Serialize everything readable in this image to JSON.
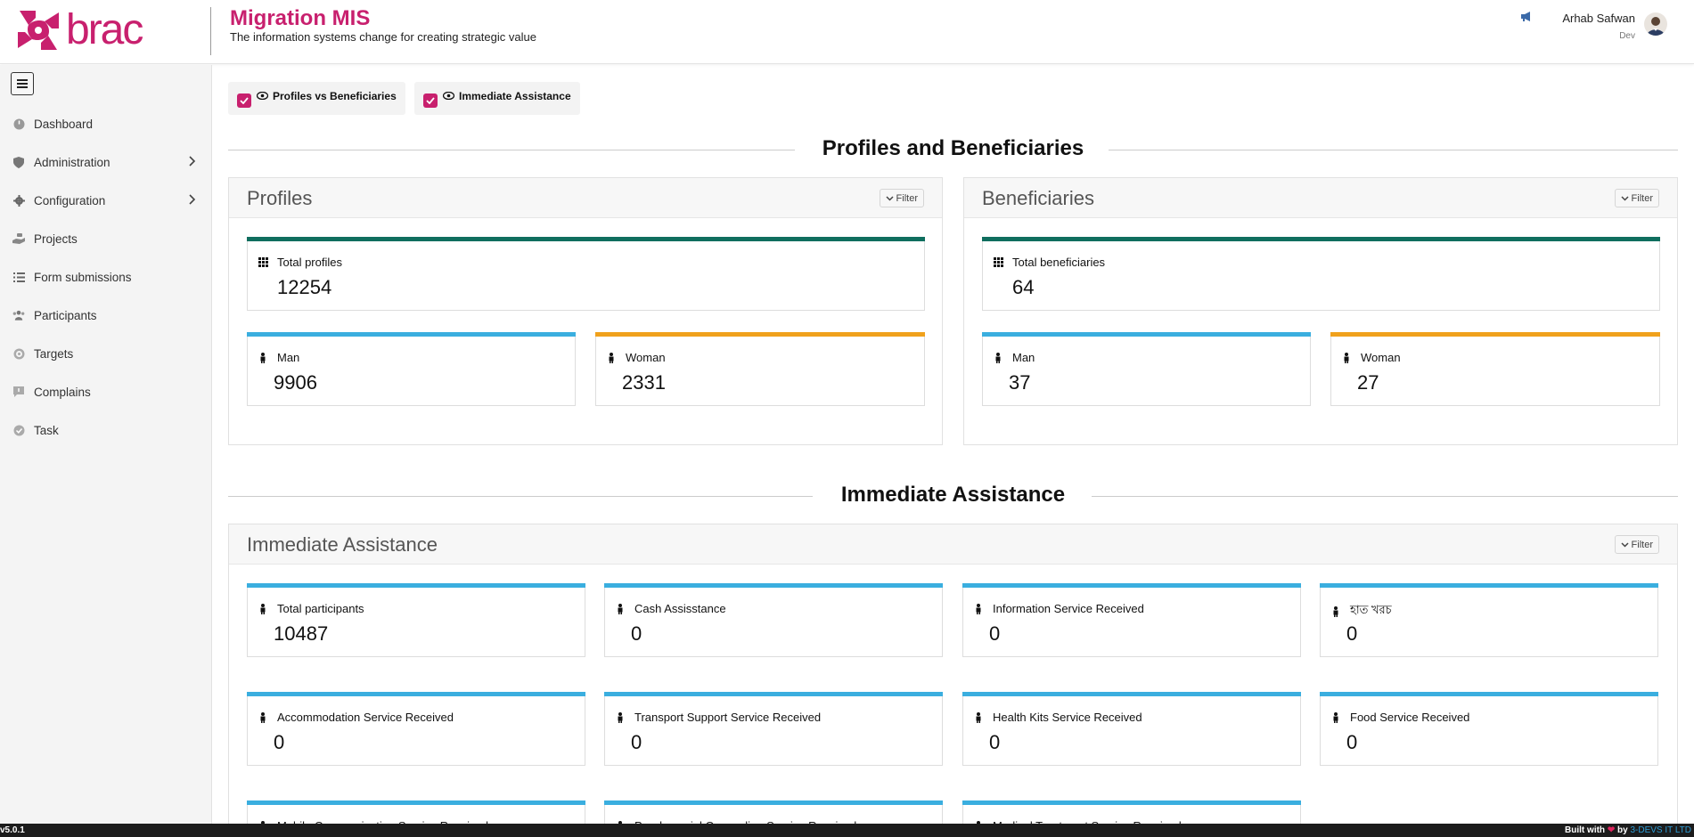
{
  "header": {
    "logo_text": "brac",
    "app_title": "Migration MIS",
    "app_subtitle": "The information systems change for creating strategic value",
    "user_name": "Arhab Safwan",
    "user_role": "Dev"
  },
  "sidebar": {
    "items": [
      {
        "label": "Dashboard",
        "icon": "dashboard-icon"
      },
      {
        "label": "Administration",
        "icon": "shield-icon"
      },
      {
        "label": "Configuration",
        "icon": "gear-icon"
      },
      {
        "label": "Projects",
        "icon": "hand-icon"
      },
      {
        "label": "Form submissions",
        "icon": "list-icon"
      },
      {
        "label": "Participants",
        "icon": "users-icon"
      },
      {
        "label": "Targets",
        "icon": "target-icon"
      },
      {
        "label": "Complains",
        "icon": "comment-icon"
      },
      {
        "label": "Task",
        "icon": "check-circle-icon"
      }
    ]
  },
  "toggles": {
    "profiles_vs_beneficiaries": "Profiles vs Beneficiaries",
    "immediate_assistance": "Immediate Assistance"
  },
  "sections": {
    "profiles_beneficiaries_title": "Profiles and Beneficiaries",
    "immediate_title": "Immediate Assistance"
  },
  "profiles": {
    "title": "Profiles",
    "filter": "Filter",
    "total_label": "Total profiles",
    "total_value": "12254",
    "man_label": "Man",
    "man_value": "9906",
    "woman_label": "Woman",
    "woman_value": "2331"
  },
  "beneficiaries": {
    "title": "Beneficiaries",
    "filter": "Filter",
    "total_label": "Total beneficiaries",
    "total_value": "64",
    "man_label": "Man",
    "man_value": "37",
    "woman_label": "Woman",
    "woman_value": "27"
  },
  "immediate": {
    "title": "Immediate Assistance",
    "filter": "Filter",
    "cards": [
      {
        "label": "Total participants",
        "value": "10487"
      },
      {
        "label": "Cash Assisstance",
        "value": "0"
      },
      {
        "label": "Information Service Received",
        "value": "0"
      },
      {
        "label": "হাত খরচ",
        "value": "0"
      },
      {
        "label": "Accommodation Service Received",
        "value": "0"
      },
      {
        "label": "Transport Support Service Received",
        "value": "0"
      },
      {
        "label": "Health Kits Service Received",
        "value": "0"
      },
      {
        "label": "Food Service Received",
        "value": "0"
      },
      {
        "label": "Mobile Communication Service Received",
        "value": ""
      },
      {
        "label": "Psychosocial Counseling Service Received",
        "value": ""
      },
      {
        "label": "Medical Treatment Service Received",
        "value": ""
      }
    ]
  },
  "footer": {
    "version": "v5.0.1",
    "built_with": "Built with",
    "by": "by",
    "company": "3-DEVS IT LTD"
  },
  "colors": {
    "brand": "#c8206e",
    "teal": "#0f6e5e",
    "blue": "#3aaedf",
    "orange": "#f0a11c"
  }
}
